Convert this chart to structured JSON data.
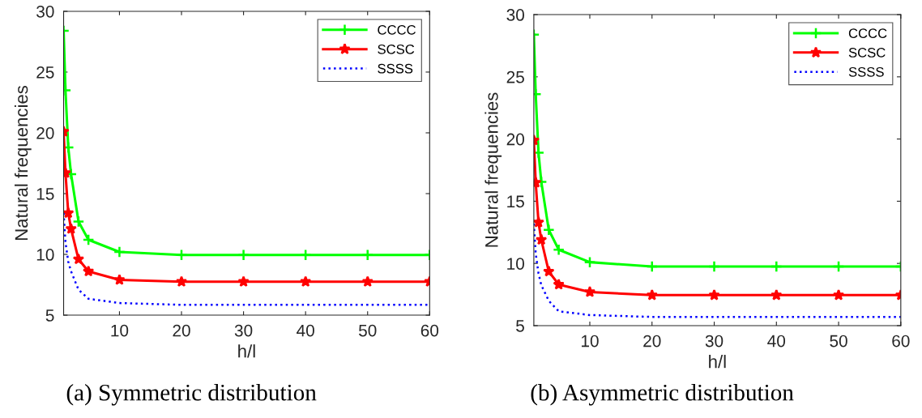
{
  "chart_data": [
    {
      "type": "line",
      "xlabel": "h/l",
      "ylabel": "Natural frequencies",
      "xlim": [
        1,
        60
      ],
      "xticks": [
        10,
        20,
        30,
        40,
        50,
        60
      ],
      "ylim": [
        5,
        30
      ],
      "yticks": [
        5,
        10,
        15,
        20,
        25,
        30
      ],
      "legend": "top right",
      "grid": false,
      "annotations": [
        "(a) Symmetric distribution"
      ],
      "x": [
        1,
        1.3,
        1.75,
        2.2,
        3.4,
        5,
        10,
        20,
        30,
        40,
        50,
        60
      ],
      "series": [
        {
          "name": "CCCC",
          "color": "#00ff00",
          "marker": "cross",
          "line_style": "solid",
          "values": [
            28.4,
            23.5,
            18.8,
            16.6,
            12.7,
            11.2,
            10.2,
            9.95,
            9.95,
            9.95,
            9.95,
            9.95
          ]
        },
        {
          "name": "SCSC",
          "color": "#ff0000",
          "marker": "star",
          "line_style": "solid",
          "values": [
            20.1,
            16.7,
            13.4,
            12.1,
            9.6,
            8.6,
            7.9,
            7.75,
            7.75,
            7.75,
            7.75,
            7.75
          ]
        },
        {
          "name": "SSSS",
          "color": "#0000ff",
          "marker": "none",
          "line_style": "dotted",
          "values": [
            13.4,
            11.0,
            9.4,
            8.6,
            7.1,
            6.35,
            6.0,
            5.85,
            5.85,
            5.85,
            5.85,
            5.85
          ]
        }
      ]
    },
    {
      "type": "line",
      "xlabel": "h/l",
      "ylabel": "Natural frequencies",
      "xlim": [
        1,
        60
      ],
      "xticks": [
        10,
        20,
        30,
        40,
        50,
        60
      ],
      "ylim": [
        5,
        30
      ],
      "yticks": [
        5,
        10,
        15,
        20,
        25,
        30
      ],
      "legend": "top right",
      "grid": false,
      "annotations": [
        "(b) Asymmetric distribution"
      ],
      "x": [
        1,
        1.3,
        1.75,
        2.2,
        3.4,
        5,
        10,
        20,
        30,
        40,
        50,
        60
      ],
      "series": [
        {
          "name": "CCCC",
          "color": "#00ff00",
          "marker": "cross",
          "line_style": "solid",
          "values": [
            28.4,
            23.6,
            18.9,
            16.55,
            12.7,
            11.1,
            10.1,
            9.75,
            9.75,
            9.75,
            9.75,
            9.75
          ]
        },
        {
          "name": "SCSC",
          "color": "#ff0000",
          "marker": "star",
          "line_style": "solid",
          "values": [
            19.9,
            16.5,
            13.3,
            11.9,
            9.35,
            8.3,
            7.7,
            7.45,
            7.45,
            7.45,
            7.45,
            7.45
          ]
        },
        {
          "name": "SSSS",
          "color": "#0000ff",
          "marker": "none",
          "line_style": "dotted",
          "values": [
            13.2,
            10.8,
            9.2,
            8.25,
            7.0,
            6.15,
            5.85,
            5.7,
            5.7,
            5.7,
            5.7,
            5.7
          ]
        }
      ]
    }
  ]
}
